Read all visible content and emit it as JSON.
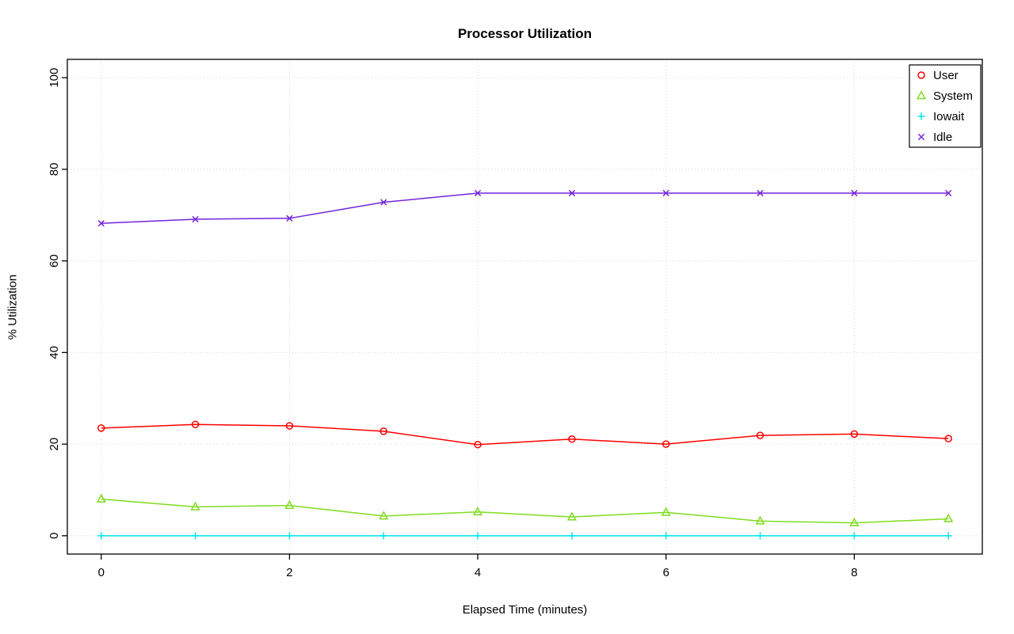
{
  "chart_data": {
    "type": "line",
    "title": "Processor Utilization",
    "xlabel": "Elapsed Time (minutes)",
    "ylabel": "% Utilization",
    "x": [
      0,
      1,
      2,
      3,
      4,
      5,
      6,
      7,
      8,
      9
    ],
    "xticks": [
      0,
      2,
      4,
      6,
      8
    ],
    "yticks": [
      0,
      20,
      40,
      60,
      80,
      100
    ],
    "xlim": [
      -0.36,
      9.36
    ],
    "ylim": [
      -4,
      104
    ],
    "grid": true,
    "grid_color": "#d6d6d6",
    "axis_color": "#000000",
    "legend_position": "top-right",
    "series": [
      {
        "name": "User",
        "color": "#ff0000",
        "marker": "circle",
        "values": [
          23.5,
          24.3,
          24.0,
          22.8,
          19.9,
          21.1,
          20.0,
          21.9,
          22.2,
          21.2
        ]
      },
      {
        "name": "System",
        "color": "#7fdc1f",
        "marker": "triangle",
        "values": [
          8.0,
          6.3,
          6.6,
          4.3,
          5.2,
          4.1,
          5.1,
          3.2,
          2.8,
          3.7
        ]
      },
      {
        "name": "Iowait",
        "color": "#00e5ee",
        "marker": "plus",
        "values": [
          0,
          0,
          0,
          0,
          0,
          0,
          0,
          0,
          0,
          0
        ]
      },
      {
        "name": "Idle",
        "color": "#7325dc",
        "marker": "x",
        "values": [
          68.2,
          69.1,
          69.3,
          72.8,
          74.8,
          74.8,
          74.8,
          74.8,
          74.8,
          74.8
        ]
      }
    ]
  }
}
